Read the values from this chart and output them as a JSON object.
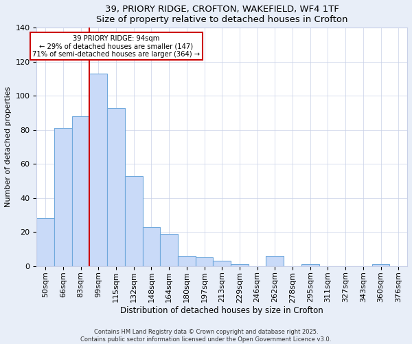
{
  "title_line1": "39, PRIORY RIDGE, CROFTON, WAKEFIELD, WF4 1TF",
  "title_line2": "Size of property relative to detached houses in Crofton",
  "xlabel": "Distribution of detached houses by size in Crofton",
  "ylabel": "Number of detached properties",
  "categories": [
    "50sqm",
    "66sqm",
    "83sqm",
    "99sqm",
    "115sqm",
    "132sqm",
    "148sqm",
    "164sqm",
    "180sqm",
    "197sqm",
    "213sqm",
    "229sqm",
    "246sqm",
    "262sqm",
    "278sqm",
    "295sqm",
    "311sqm",
    "327sqm",
    "343sqm",
    "360sqm",
    "376sqm"
  ],
  "values": [
    28,
    81,
    88,
    113,
    93,
    53,
    23,
    19,
    6,
    5,
    3,
    1,
    0,
    6,
    0,
    1,
    0,
    0,
    0,
    1,
    0
  ],
  "bar_color": "#c9daf8",
  "bar_edge_color": "#6fa8dc",
  "vline_color": "#cc0000",
  "annotation_line1": "39 PRIORY RIDGE: 94sqm",
  "annotation_line2": "← 29% of detached houses are smaller (147)",
  "annotation_line3": "71% of semi-detached houses are larger (364) →",
  "annotation_box_color": "#ffffff",
  "annotation_box_edge_color": "#cc0000",
  "footer_text": "Contains HM Land Registry data © Crown copyright and database right 2025.\nContains public sector information licensed under the Open Government Licence v3.0.",
  "ylim": [
    0,
    140
  ],
  "background_color": "#e8eef8",
  "plot_background_color": "#ffffff",
  "grid_color": "#c8d0e8"
}
